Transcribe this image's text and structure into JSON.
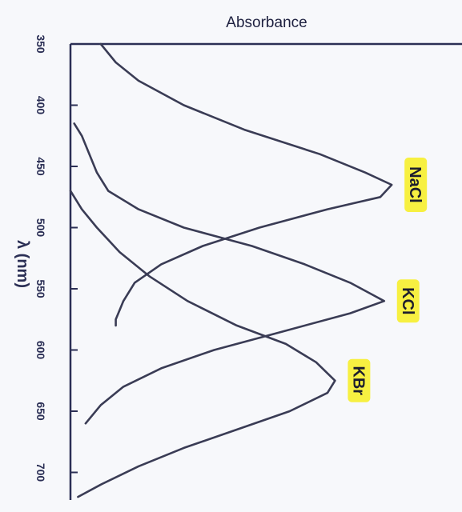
{
  "chart_data": {
    "type": "line",
    "orientation": "rotated: wavelength on vertical axis increasing downward, absorbance increasing to the right",
    "title": "Absorbance",
    "ylabel": "λ (nm)",
    "xlabel": "",
    "ylim": [
      350,
      720
    ],
    "ticks": [
      "350",
      "400",
      "450",
      "500",
      "550",
      "600",
      "650",
      "700"
    ],
    "grid": false,
    "colors": {
      "line": "#3a3c55",
      "highlight": "#f7f041",
      "axis": "#2b2f55"
    },
    "series": [
      {
        "name": "NaCl",
        "points": [
          [
            350,
            0.08
          ],
          [
            365,
            0.12
          ],
          [
            380,
            0.18
          ],
          [
            400,
            0.3
          ],
          [
            420,
            0.46
          ],
          [
            440,
            0.66
          ],
          [
            455,
            0.78
          ],
          [
            465,
            0.85
          ],
          [
            475,
            0.82
          ],
          [
            485,
            0.68
          ],
          [
            500,
            0.5
          ],
          [
            515,
            0.35
          ],
          [
            530,
            0.24
          ],
          [
            545,
            0.17
          ],
          [
            560,
            0.14
          ],
          [
            575,
            0.12
          ],
          [
            580,
            0.12
          ]
        ]
      },
      {
        "name": "KCl",
        "points": [
          [
            415,
            0.01
          ],
          [
            425,
            0.03
          ],
          [
            440,
            0.05
          ],
          [
            455,
            0.07
          ],
          [
            470,
            0.1
          ],
          [
            485,
            0.18
          ],
          [
            500,
            0.3
          ],
          [
            515,
            0.48
          ],
          [
            530,
            0.62
          ],
          [
            545,
            0.74
          ],
          [
            555,
            0.8
          ],
          [
            560,
            0.83
          ],
          [
            570,
            0.74
          ],
          [
            585,
            0.56
          ],
          [
            600,
            0.38
          ],
          [
            615,
            0.24
          ],
          [
            630,
            0.14
          ],
          [
            645,
            0.08
          ],
          [
            660,
            0.04
          ]
        ]
      },
      {
        "name": "KBr",
        "points": [
          [
            470,
            0.0
          ],
          [
            485,
            0.03
          ],
          [
            500,
            0.07
          ],
          [
            520,
            0.13
          ],
          [
            540,
            0.21
          ],
          [
            560,
            0.31
          ],
          [
            580,
            0.44
          ],
          [
            595,
            0.57
          ],
          [
            610,
            0.65
          ],
          [
            625,
            0.7
          ],
          [
            635,
            0.68
          ],
          [
            650,
            0.58
          ],
          [
            665,
            0.44
          ],
          [
            680,
            0.3
          ],
          [
            695,
            0.18
          ],
          [
            710,
            0.08
          ],
          [
            720,
            0.02
          ]
        ]
      }
    ],
    "legend": [
      "NaCl",
      "KCl",
      "KBr"
    ]
  }
}
